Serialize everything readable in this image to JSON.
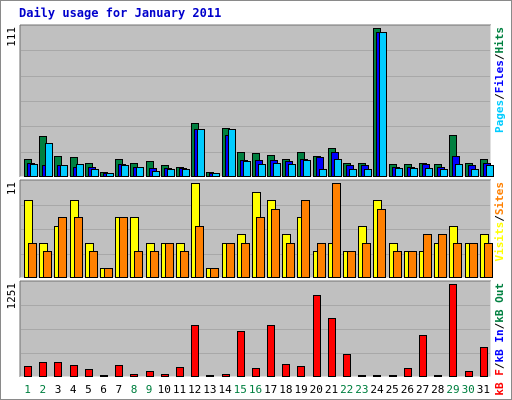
{
  "title": "Daily usage for January 2011",
  "colors": {
    "frame_bg": "#ffffff",
    "panel_bg": "#c0c0c0",
    "grid": "#a8a8a8",
    "pages": "#00ccff",
    "files": "#0000ff",
    "hits": "#008040",
    "visits": "#ffff00",
    "sites": "#ff8000",
    "kb_in": "#0000ff",
    "kb_f": "#ff0000",
    "kb_out": "#008040",
    "weekday_label": "#000000",
    "weekend_label": "#008040"
  },
  "chart_data": [
    {
      "type": "bar",
      "panel": "hits-files-pages",
      "ymax_label": "111",
      "ylim": [
        0,
        111
      ],
      "legend": [
        "Pages",
        "/",
        "Files",
        "/",
        "Hits"
      ],
      "categories": [
        "1",
        "2",
        "3",
        "4",
        "5",
        "6",
        "7",
        "8",
        "9",
        "10",
        "11",
        "12",
        "13",
        "14",
        "15",
        "16",
        "17",
        "18",
        "19",
        "20",
        "21",
        "22",
        "23",
        "24",
        "25",
        "26",
        "27",
        "28",
        "29",
        "30",
        "31"
      ],
      "series": [
        {
          "name": "Hits",
          "values": [
            13,
            30,
            15,
            14,
            10,
            3,
            13,
            10,
            11,
            8,
            7,
            40,
            3,
            36,
            18,
            17,
            16,
            13,
            18,
            15,
            21,
            10,
            10,
            111,
            9,
            9,
            10,
            9,
            31,
            10,
            13
          ]
        },
        {
          "name": "Files",
          "values": [
            10,
            8,
            8,
            7,
            7,
            2,
            9,
            7,
            6,
            6,
            6,
            35,
            2,
            31,
            12,
            12,
            12,
            11,
            13,
            14,
            18,
            8,
            8,
            108,
            7,
            7,
            9,
            7,
            15,
            8,
            10
          ]
        },
        {
          "name": "Pages",
          "values": [
            9,
            25,
            8,
            9,
            5,
            2,
            8,
            7,
            4,
            5,
            5,
            35,
            2,
            35,
            11,
            9,
            10,
            9,
            12,
            5,
            13,
            5,
            5,
            108,
            6,
            6,
            6,
            5,
            9,
            5,
            8
          ]
        }
      ],
      "weekend_days": [
        "1",
        "2",
        "8",
        "9",
        "15",
        "16",
        "22",
        "23",
        "29",
        "30"
      ]
    },
    {
      "type": "bar",
      "panel": "visits-sites",
      "ymax_label": "11",
      "ylim": [
        0,
        11
      ],
      "legend": [
        "Visits",
        "/",
        "Sites"
      ],
      "categories": [
        "1",
        "2",
        "3",
        "4",
        "5",
        "6",
        "7",
        "8",
        "9",
        "10",
        "11",
        "12",
        "13",
        "14",
        "15",
        "16",
        "17",
        "18",
        "19",
        "20",
        "21",
        "22",
        "23",
        "24",
        "25",
        "26",
        "27",
        "28",
        "29",
        "30",
        "31"
      ],
      "series": [
        {
          "name": "Visits",
          "values": [
            9,
            4,
            6,
            9,
            4,
            1,
            7,
            7,
            4,
            4,
            4,
            11,
            1,
            4,
            5,
            10,
            9,
            5,
            7,
            3,
            4,
            3,
            6,
            9,
            4,
            3,
            3,
            4,
            6,
            4,
            5
          ]
        },
        {
          "name": "Sites",
          "values": [
            4,
            3,
            7,
            7,
            3,
            1,
            7,
            3,
            3,
            4,
            3,
            6,
            1,
            4,
            4,
            7,
            8,
            4,
            9,
            4,
            11,
            3,
            4,
            8,
            3,
            3,
            5,
            5,
            4,
            4,
            4
          ]
        }
      ]
    },
    {
      "type": "bar",
      "panel": "kbytes",
      "ymax_label": "1251",
      "ylim": [
        0,
        1251
      ],
      "legend": [
        "kB F",
        "/",
        "kB In",
        "/",
        "kB Out"
      ],
      "categories": [
        "1",
        "2",
        "3",
        "4",
        "5",
        "6",
        "7",
        "8",
        "9",
        "10",
        "11",
        "12",
        "13",
        "14",
        "15",
        "16",
        "17",
        "18",
        "19",
        "20",
        "21",
        "22",
        "23",
        "24",
        "25",
        "26",
        "27",
        "28",
        "29",
        "30",
        "31"
      ],
      "series": [
        {
          "name": "kB F",
          "values": [
            130,
            190,
            190,
            150,
            90,
            20,
            150,
            30,
            70,
            30,
            120,
            700,
            20,
            30,
            610,
            110,
            700,
            160,
            130,
            1100,
            790,
            300,
            10,
            20,
            20,
            110,
            560,
            20,
            1251,
            70,
            400
          ]
        }
      ]
    }
  ]
}
